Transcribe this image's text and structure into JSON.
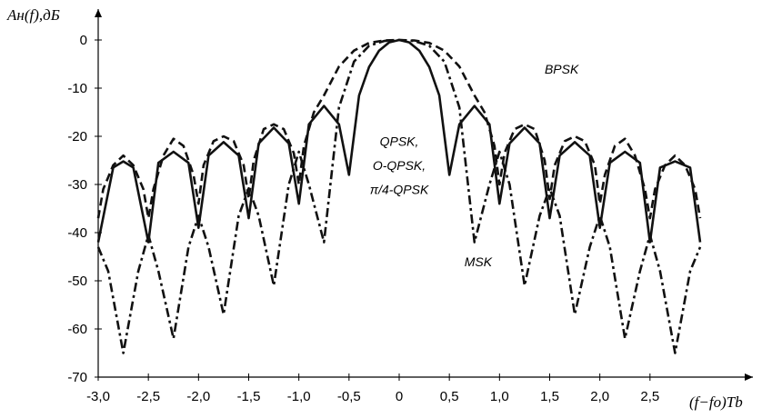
{
  "chart_data": {
    "type": "line",
    "title": "",
    "ylabel": "Aн(f),дБ",
    "xlabel": "(f−fo)Tb",
    "xlim": [
      -3.0,
      3.0
    ],
    "ylim": [
      -70,
      0
    ],
    "x_tick_labels": [
      "-3,0",
      "-2,5",
      "-2,0",
      "-1,5",
      "-1,0",
      "-0,5",
      "0",
      "0,5",
      "1,0",
      "1,5",
      "2,0",
      "2,5"
    ],
    "x_tick_values": [
      -3.0,
      -2.5,
      -2.0,
      -1.5,
      -1.0,
      -0.5,
      0,
      0.5,
      1.0,
      1.5,
      2.0,
      2.5
    ],
    "y_tick_labels": [
      "0",
      "-10",
      "-20",
      "-30",
      "-40",
      "-50",
      "-60",
      "-70"
    ],
    "y_tick_values": [
      0,
      -10,
      -20,
      -30,
      -40,
      -50,
      -60,
      -70
    ],
    "grid": false,
    "series": [
      {
        "name": "BPSK",
        "style": "dashed",
        "x": [
          -3.0,
          -2.95,
          -2.85,
          -2.75,
          -2.65,
          -2.55,
          -2.5,
          -2.45,
          -2.35,
          -2.25,
          -2.15,
          -2.05,
          -2.0,
          -1.95,
          -1.85,
          -1.75,
          -1.65,
          -1.55,
          -1.5,
          -1.45,
          -1.35,
          -1.25,
          -1.15,
          -1.05,
          -1.0,
          -0.95,
          -0.85,
          -0.75,
          -0.6,
          -0.45,
          -0.3,
          -0.15,
          0,
          0.15,
          0.3,
          0.45,
          0.6,
          0.75,
          0.85,
          0.95,
          1.0,
          1.05,
          1.15,
          1.25,
          1.35,
          1.45,
          1.5,
          1.55,
          1.65,
          1.75,
          1.85,
          1.95,
          2.0,
          2.05,
          2.15,
          2.25,
          2.35,
          2.45,
          2.5,
          2.55,
          2.65,
          2.75,
          2.85,
          2.95,
          3.0
        ],
        "y": [
          -37,
          -31,
          -26,
          -24,
          -26,
          -31,
          -37,
          -31,
          -24,
          -20.5,
          -22,
          -28,
          -34,
          -26,
          -21,
          -20,
          -21,
          -26,
          -33,
          -25,
          -18.5,
          -17.5,
          -18.5,
          -23.5,
          -30,
          -22,
          -15,
          -11.5,
          -5.5,
          -2.2,
          -0.6,
          -0.1,
          0,
          -0.1,
          -0.6,
          -2.2,
          -5.5,
          -11.5,
          -15,
          -22,
          -30,
          -23.5,
          -18.5,
          -17.5,
          -18.5,
          -25,
          -33,
          -26,
          -21,
          -20,
          -21,
          -26,
          -34,
          -28,
          -22,
          -20.5,
          -24,
          -31,
          -37,
          -31,
          -26,
          -24,
          -26,
          -31,
          -37
        ]
      },
      {
        "name": "QPSK, O-QPSK, π/4-QPSK",
        "style": "solid",
        "x": [
          -3.0,
          -2.85,
          -2.75,
          -2.65,
          -2.5,
          -2.4,
          -2.25,
          -2.1,
          -2.0,
          -1.9,
          -1.75,
          -1.6,
          -1.5,
          -1.4,
          -1.25,
          -1.1,
          -1.0,
          -0.9,
          -0.75,
          -0.6,
          -0.5,
          -0.4,
          -0.3,
          -0.2,
          -0.1,
          0,
          0.1,
          0.2,
          0.3,
          0.4,
          0.5,
          0.6,
          0.75,
          0.9,
          1.0,
          1.1,
          1.25,
          1.4,
          1.5,
          1.6,
          1.75,
          1.9,
          2.0,
          2.1,
          2.25,
          2.4,
          2.5,
          2.6,
          2.75,
          2.9,
          3.0
        ],
        "y": [
          -42,
          -26.5,
          -25.2,
          -26.5,
          -42,
          -25.5,
          -23.2,
          -25.5,
          -39,
          -24,
          -21.2,
          -24,
          -37,
          -21.5,
          -18.2,
          -21.5,
          -34,
          -17.5,
          -13.7,
          -17.5,
          -28,
          -11.5,
          -5.6,
          -2.2,
          -0.5,
          0,
          -0.5,
          -2.2,
          -5.6,
          -11.5,
          -28,
          -17.5,
          -13.7,
          -17.5,
          -34,
          -21.5,
          -18.2,
          -21.5,
          -37,
          -24,
          -21.2,
          -24,
          -39,
          -25.5,
          -23.2,
          -25.5,
          -42,
          -26.5,
          -25.2,
          -26.5,
          -42
        ]
      },
      {
        "name": "MSK",
        "style": "dash-dot",
        "x": [
          -3.0,
          -2.9,
          -2.75,
          -2.6,
          -2.5,
          -2.4,
          -2.25,
          -2.1,
          -2.0,
          -1.9,
          -1.75,
          -1.6,
          -1.5,
          -1.4,
          -1.25,
          -1.1,
          -1.0,
          -0.9,
          -0.75,
          -0.6,
          -0.45,
          -0.3,
          -0.15,
          0,
          0.15,
          0.3,
          0.45,
          0.6,
          0.75,
          0.9,
          1.0,
          1.1,
          1.25,
          1.4,
          1.5,
          1.6,
          1.75,
          1.9,
          2.0,
          2.1,
          2.25,
          2.4,
          2.5,
          2.6,
          2.75,
          2.9,
          3.0
        ],
        "y": [
          -43,
          -48,
          -65,
          -48,
          -40.5,
          -48,
          -62,
          -43,
          -36.5,
          -43,
          -57,
          -36.5,
          -30.8,
          -36.5,
          -51,
          -30,
          -23.2,
          -30,
          -42,
          -14,
          -4.5,
          -1.2,
          -0.2,
          0,
          -0.2,
          -1.2,
          -4.5,
          -14,
          -42,
          -30,
          -23.2,
          -30,
          -51,
          -36.5,
          -30.8,
          -36.5,
          -57,
          -43,
          -36.5,
          -43,
          -62,
          -48,
          -40.5,
          -48,
          -65,
          -48,
          -43
        ]
      }
    ],
    "annotations": [
      {
        "text": "BPSK",
        "x": 1.45,
        "y": -7
      },
      {
        "text": "QPSK,",
        "x": 0.0,
        "y": -22
      },
      {
        "text": "O-QPSK,",
        "x": 0.0,
        "y": -27
      },
      {
        "text": "π/4-QPSK",
        "x": 0.0,
        "y": -32
      },
      {
        "text": "MSK",
        "x": 0.65,
        "y": -47
      }
    ]
  }
}
